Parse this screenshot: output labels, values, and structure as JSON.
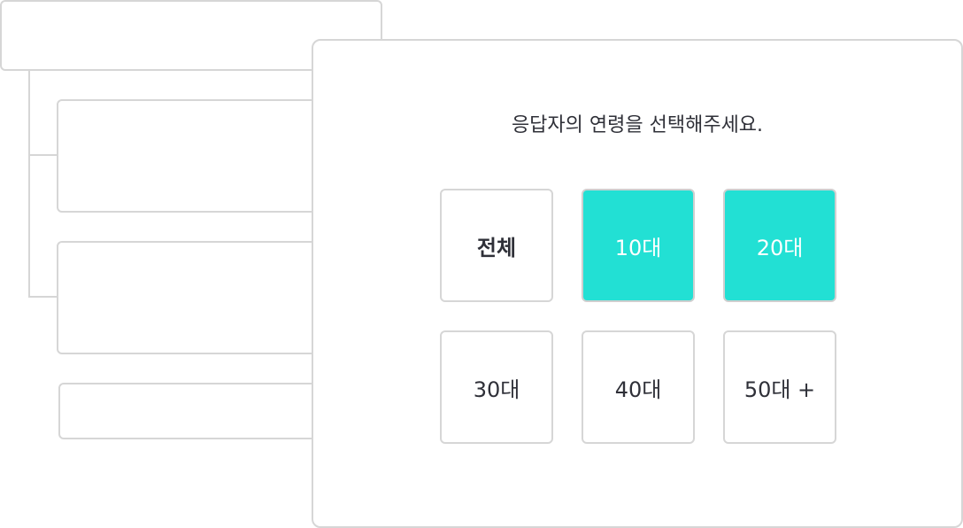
{
  "question": "응답자의 연령을 선택해주세요.",
  "accent_color": "#22e0d4",
  "options": [
    {
      "label": "전체",
      "selected": false
    },
    {
      "label": "10대",
      "selected": true
    },
    {
      "label": "20대",
      "selected": true
    },
    {
      "label": "30대",
      "selected": false
    },
    {
      "label": "40대",
      "selected": false
    },
    {
      "label": "50대 +",
      "selected": false
    }
  ]
}
